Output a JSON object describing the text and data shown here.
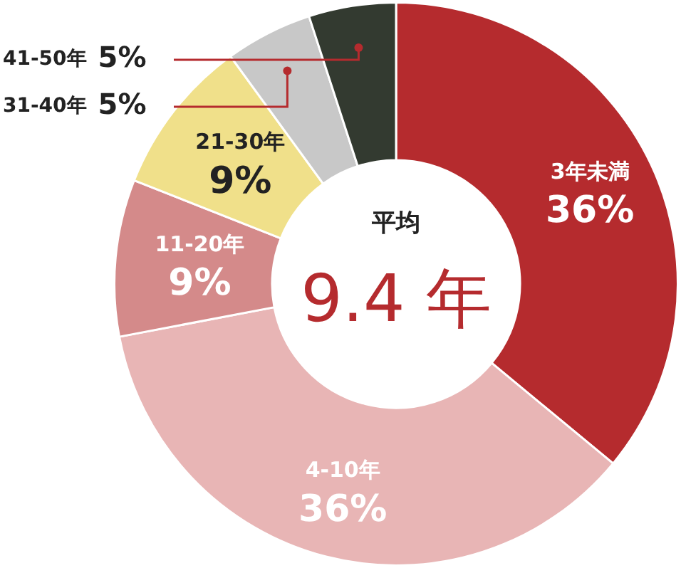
{
  "chart_data": {
    "type": "donut",
    "categories": [
      "3年未満",
      "4-10年",
      "11-20年",
      "21-30年",
      "31-40年",
      "41-50年"
    ],
    "values": [
      36,
      36,
      9,
      9,
      5,
      5
    ],
    "colors": [
      "#b52b2e",
      "#e8b5b5",
      "#d48a8a",
      "#f0e08a",
      "#c8c8c8",
      "#333a30"
    ],
    "value_labels": [
      "36%",
      "36%",
      "9%",
      "9%",
      "5%",
      "5%"
    ],
    "annotations": [
      "平均",
      "9.4 年"
    ],
    "legend": false
  }
}
